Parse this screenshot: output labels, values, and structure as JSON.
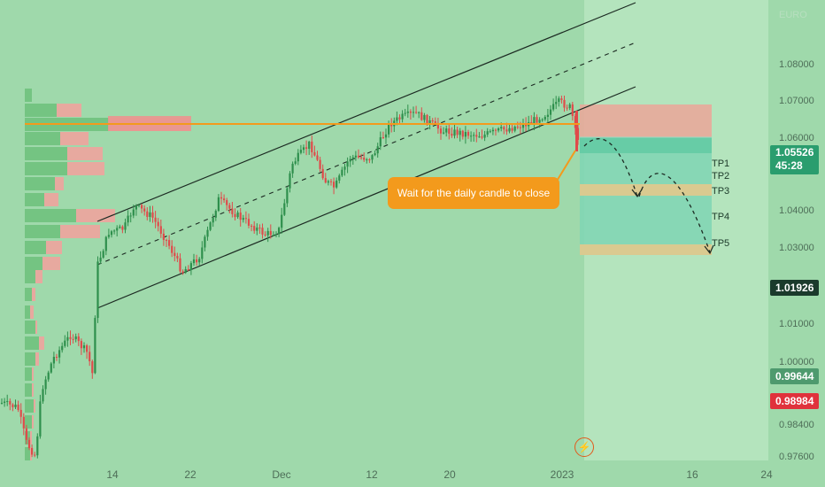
{
  "chart_data": {
    "type": "candlestick",
    "symbol_faded": "EURO",
    "y_ticks": [
      "1.08000",
      "1.07000",
      "1.06000",
      "1.04000",
      "1.03000",
      "1.01000",
      "1.00000",
      "0.98400",
      "0.97600"
    ],
    "x_ticks": [
      "14",
      "22",
      "Dec",
      "12",
      "20",
      "2023",
      "16",
      "24"
    ],
    "current_price": "1.05526",
    "countdown": "45:28",
    "price_tags": [
      {
        "value": "1.01926",
        "color": "#1b3a2c"
      },
      {
        "value": "0.99644",
        "color": "#4e9a6e"
      },
      {
        "value": "0.98984",
        "color": "#e0323c"
      }
    ],
    "take_profit_levels": [
      "TP1",
      "TP2",
      "TP3",
      "TP4",
      "TP5"
    ],
    "annotation": "Wait for the daily candle to close",
    "colors": {
      "background": "#9fd9ab",
      "bull": "#2e8f4c",
      "bear": "#e04a4a",
      "horizontal_level": "#f39a1c",
      "stop_zone": "#e8a89a",
      "target_zone": "#7fd5b4",
      "tp_band": "#e9c88a"
    }
  }
}
